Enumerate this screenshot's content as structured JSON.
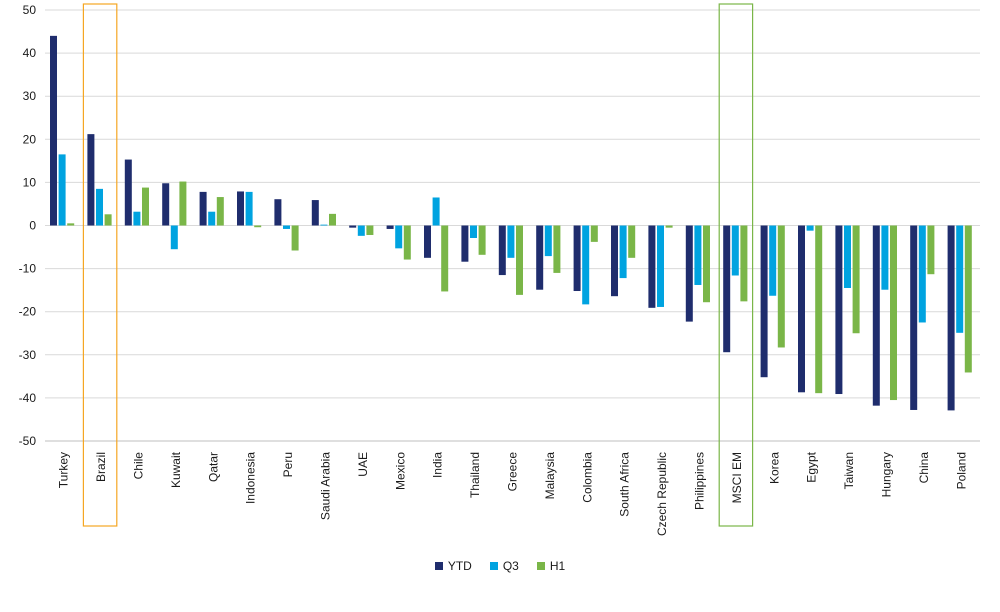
{
  "chart_data": {
    "type": "bar",
    "title": "",
    "xlabel": "",
    "ylabel": "",
    "ylim": [
      -50,
      50
    ],
    "yticks": [
      50,
      40,
      30,
      20,
      10,
      0,
      -10,
      -20,
      -30,
      -40,
      -50
    ],
    "grid": "horizontal",
    "legend_position": "bottom-center",
    "categories": [
      "Turkey",
      "Brazil",
      "Chile",
      "Kuwait",
      "Qatar",
      "Indonesia",
      "Peru",
      "Saudi Arabia",
      "UAE",
      "Mexico",
      "India",
      "Thailand",
      "Greece",
      "Malaysia",
      "Colombia",
      "South Africa",
      "Czech Republic",
      "Philippines",
      "MSCI EM",
      "Korea",
      "Egypt",
      "Taiwan",
      "Hungary",
      "China",
      "Poland"
    ],
    "highlighted_categories": [
      {
        "category": "Brazil",
        "color": "#f5a623"
      },
      {
        "category": "MSCI EM",
        "color": "#7ab648"
      }
    ],
    "series": [
      {
        "name": "YTD",
        "color": "#1f2d6d",
        "values": [
          44,
          21.2,
          15.3,
          9.8,
          7.8,
          7.9,
          6.1,
          5.9,
          -0.5,
          -0.8,
          -7.5,
          -8.4,
          -11.5,
          -14.9,
          -15.2,
          -16.4,
          -19.1,
          -22.3,
          -29.4,
          -35.2,
          -38.7,
          -39.1,
          -41.8,
          -42.8,
          -42.9
        ]
      },
      {
        "name": "Q3",
        "color": "#00a3e0",
        "values": [
          16.5,
          8.5,
          3.2,
          -5.5,
          3.2,
          7.8,
          -0.8,
          0.2,
          -2.4,
          -5.3,
          6.5,
          -2.9,
          -7.5,
          -7.1,
          -18.3,
          -12.2,
          -18.9,
          -13.8,
          -11.6,
          -16.3,
          -1.2,
          -14.5,
          -14.9,
          -22.5,
          -24.9
        ]
      },
      {
        "name": "H1",
        "color": "#7ab648",
        "values": [
          0.5,
          2.6,
          8.8,
          10.2,
          6.6,
          -0.4,
          -5.8,
          2.7,
          -2.2,
          -7.9,
          -15.3,
          -6.8,
          -16.1,
          -11.0,
          -3.8,
          -7.5,
          -0.5,
          -17.8,
          -17.6,
          -28.3,
          -38.9,
          -25.0,
          -40.5,
          -11.3,
          -34.1
        ]
      }
    ]
  }
}
